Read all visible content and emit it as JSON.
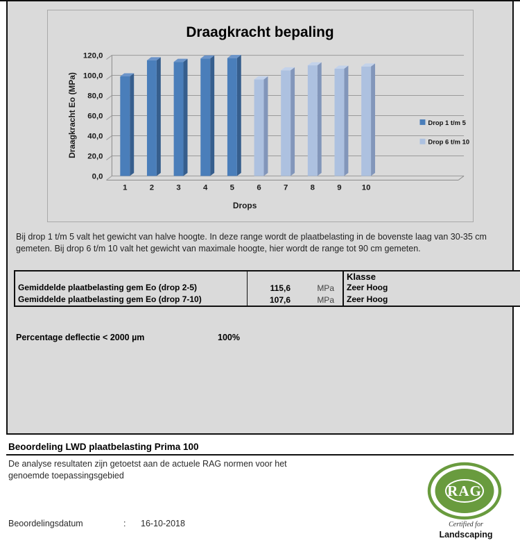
{
  "document": {
    "note_paragraph": "Bij drop 1 t/m 5 valt het gewicht van halve hoogte. In deze range wordt de plaatbelasting in de bovenste laag van 30-35 cm gemeten. Bij drop 6 t/m 10 valt het gewicht van maximale hoogte, hier wordt de range tot 90 cm gemeten.",
    "results_table": {
      "klasse_header": "Klasse",
      "rows": [
        {
          "label": "Gemiddelde plaatbelasting gem Eo (drop 2-5)",
          "value": "115,6",
          "unit": "MPa",
          "klasse": "Zeer Hoog"
        },
        {
          "label": "Gemiddelde plaatbelasting gem Eo (drop 7-10)",
          "value": "107,6",
          "unit": "MPa",
          "klasse": "Zeer Hoog"
        }
      ]
    },
    "deflection": {
      "label": "Percentage deflectie < 2000 µm",
      "value": "100%"
    },
    "assessment": {
      "heading": "Beoordeling LWD plaatbelasting Prima 100",
      "body": "De analyse resultaten zijn getoetst aan de actuele RAG normen voor het genoemde toepassingsgebied",
      "date_label": "Beoordelingsdatum",
      "date_separator": ":",
      "date_value": "16-10-2018"
    },
    "stamp": {
      "text": "RAG",
      "subtitle": "Certified for",
      "category": "Landscaping",
      "color": "#699b3e"
    }
  },
  "chart_data": {
    "type": "bar",
    "style": "3d-column",
    "title": "Draagkracht bepaling",
    "xlabel": "Drops",
    "ylabel": "Draagkracht Eo (MPa)",
    "categories": [
      "1",
      "2",
      "3",
      "4",
      "5",
      "6",
      "7",
      "8",
      "9",
      "10"
    ],
    "series": [
      {
        "name": "Drop 1 t/m 5",
        "values": [
          99,
          115,
          113.4,
          116.8,
          117.2,
          null,
          null,
          null,
          null,
          null
        ],
        "colors": {
          "front": "#4a7eba",
          "side": "#365e8d",
          "top": "#6b94c9"
        }
      },
      {
        "name": "Drop 6 t/m 10",
        "values": [
          null,
          null,
          null,
          null,
          null,
          96,
          105,
          110,
          106.6,
          108.8
        ],
        "colors": {
          "front": "#adc1e0",
          "side": "#8296ba",
          "top": "#c3d2ea"
        }
      }
    ],
    "ylim": [
      0,
      120
    ],
    "y_ticks": [
      "0,0",
      "20,0",
      "40,0",
      "60,0",
      "80,0",
      "100,0",
      "120,0"
    ],
    "grid": true,
    "legend_position": "right",
    "background": "#dadada"
  }
}
